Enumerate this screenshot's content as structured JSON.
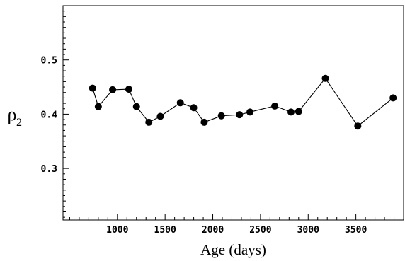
{
  "chart_data": {
    "type": "scatter",
    "title": "",
    "xlabel": "Age (days)",
    "ylabel": "ρ",
    "ylabel_subscript": "2",
    "xlim": [
      430,
      4000
    ],
    "ylim": [
      0.205,
      0.6
    ],
    "xticks": [
      1000,
      1500,
      2000,
      2500,
      3000,
      3500
    ],
    "xtick_labels": [
      "1000",
      "1500",
      "2000",
      "2500",
      "3000",
      "3500"
    ],
    "yticks": [
      0.3,
      0.4,
      0.5
    ],
    "ytick_labels": [
      "0.3",
      "0.4",
      "0.5"
    ],
    "grid": false,
    "connected": true,
    "series": [
      {
        "x": [
          740,
          800,
          950,
          1120,
          1200,
          1330,
          1450,
          1660,
          1800,
          1910,
          2090,
          2280,
          2390,
          2650,
          2820,
          2900,
          3180,
          3520,
          3890
        ],
        "y": [
          0.448,
          0.414,
          0.445,
          0.446,
          0.414,
          0.385,
          0.396,
          0.421,
          0.412,
          0.385,
          0.397,
          0.399,
          0.404,
          0.415,
          0.404,
          0.405,
          0.466,
          0.378,
          0.43
        ]
      }
    ]
  }
}
